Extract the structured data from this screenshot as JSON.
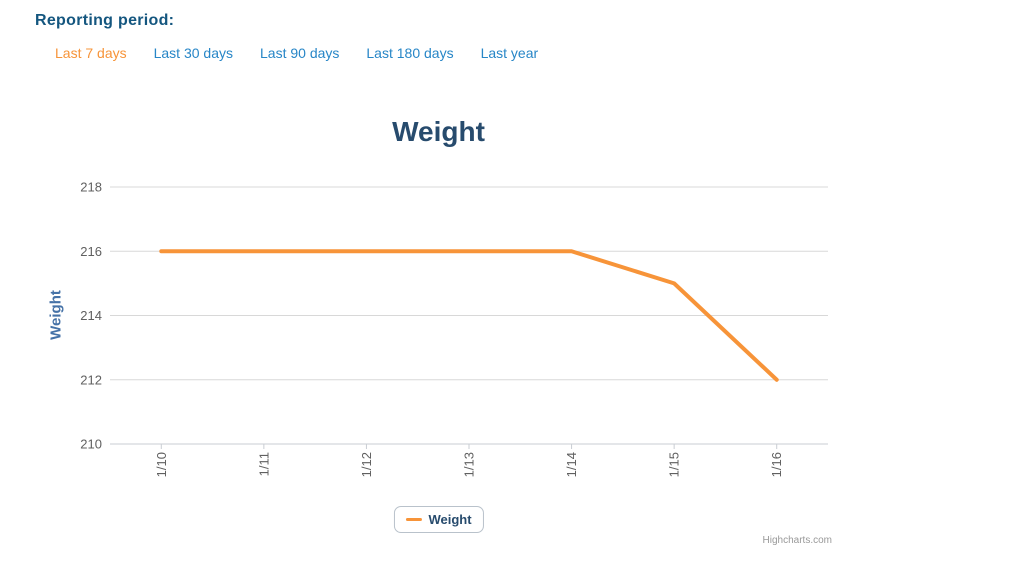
{
  "reporting_period": {
    "label": "Reporting period:",
    "options": [
      {
        "label": "Last 7 days",
        "active": true
      },
      {
        "label": "Last 30 days",
        "active": false
      },
      {
        "label": "Last 90 days",
        "active": false
      },
      {
        "label": "Last 180 days",
        "active": false
      },
      {
        "label": "Last year",
        "active": false
      }
    ]
  },
  "chart_data": {
    "type": "line",
    "title": "Weight",
    "categories": [
      "1/10",
      "1/11",
      "1/12",
      "1/13",
      "1/14",
      "1/15",
      "1/16"
    ],
    "series": [
      {
        "name": "Weight",
        "color": "#F79439",
        "values": [
          216,
          216,
          216,
          216,
          216,
          215,
          212
        ]
      }
    ],
    "xlabel": "",
    "ylabel": "Weight",
    "ylim": [
      210,
      218
    ],
    "ytick_step": 2,
    "grid": true,
    "legend_position": "bottom",
    "x_label_rotation": -90
  },
  "legend": {
    "series_label": "Weight"
  },
  "credits": {
    "label": "Highcharts.com"
  },
  "colors": {
    "header_label": "#14567F",
    "link": "#2786C7",
    "active_link": "#F79439",
    "series_orange": "#F79439",
    "title": "#274B6D",
    "axis_title": "#4572A7",
    "tick_label": "#606060",
    "gridline": "#D8D8D8",
    "axis_line": "#C9CDD3",
    "legend_border": "#B9C2CB",
    "credits_text": "#999999"
  }
}
